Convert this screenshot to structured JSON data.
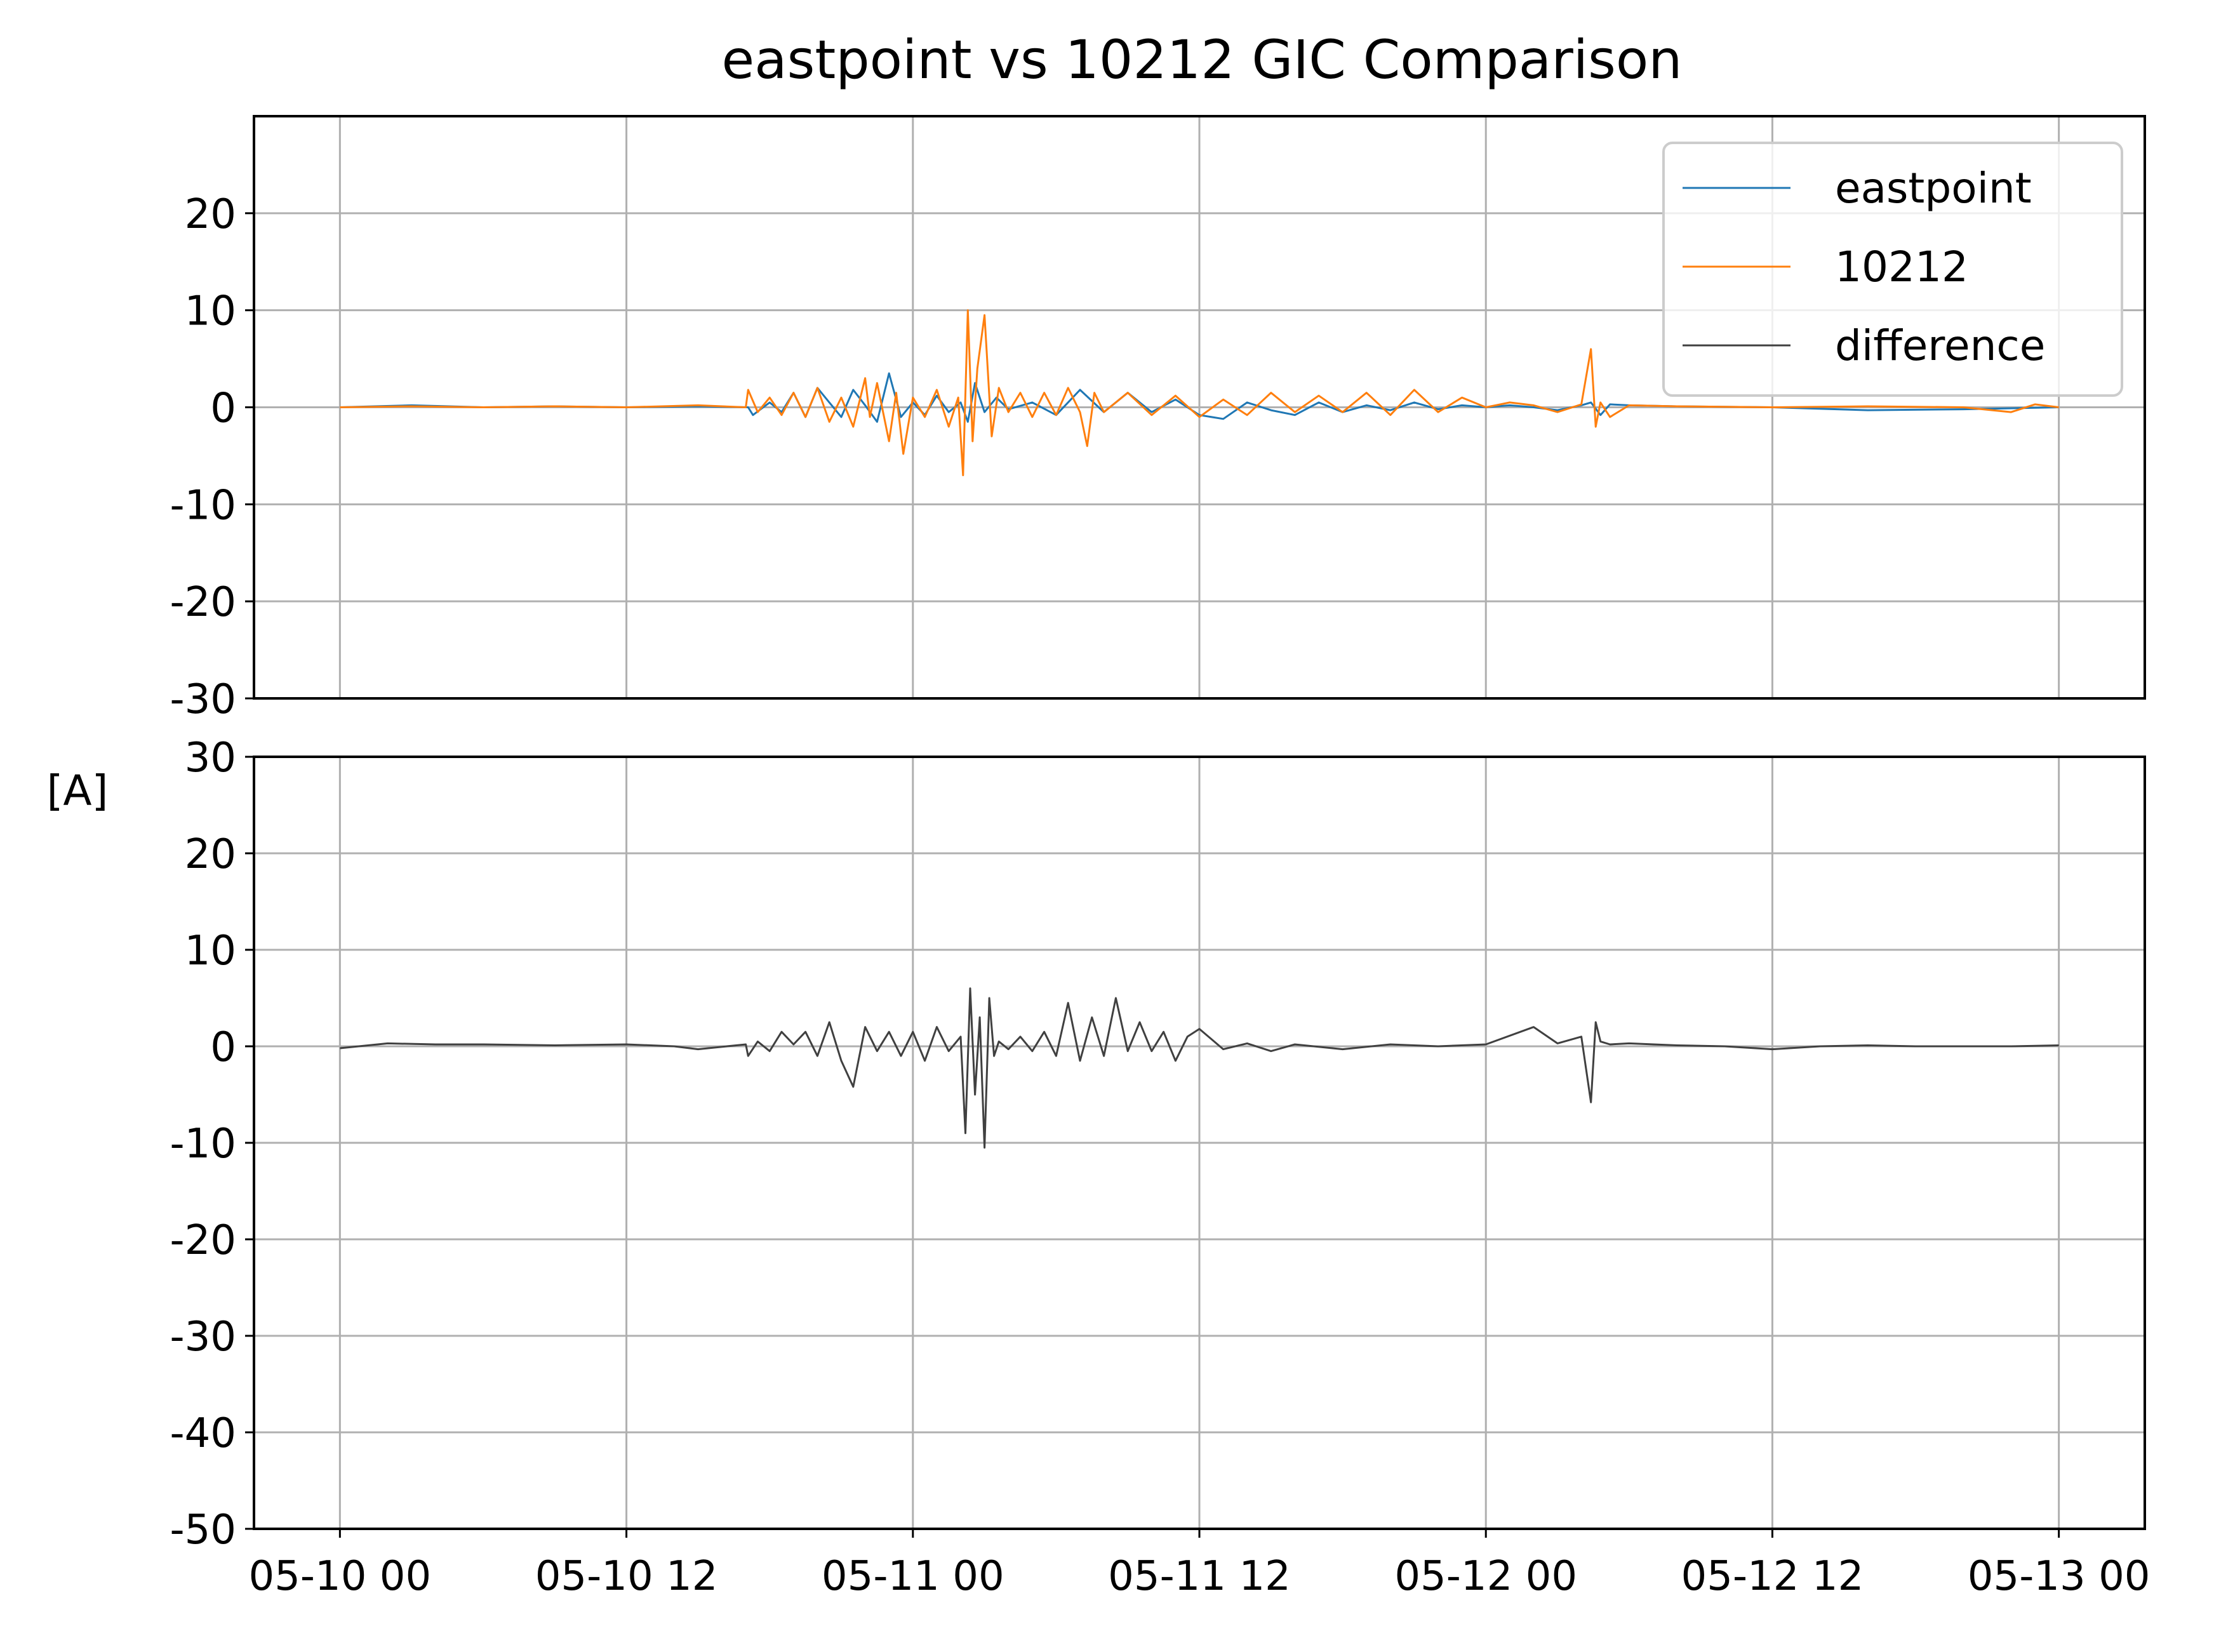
{
  "figure_title": "eastpoint vs 10212 GIC Comparison",
  "shared_ylabel": "[A]",
  "x_axis": {
    "unit": "hours since 05-10 00",
    "range": [
      -3.6,
      75.6
    ],
    "ticks": [
      0,
      12,
      24,
      36,
      48,
      60,
      72
    ],
    "tick_labels": [
      "05-10 00",
      "05-10 12",
      "05-11 00",
      "05-11 12",
      "05-12 00",
      "05-12 12",
      "05-13 00"
    ]
  },
  "colors": {
    "eastpoint": "#1f77b4",
    "10212": "#ff7f0e",
    "difference": "#404040",
    "grid": "#b0b0b0"
  },
  "legend": {
    "entries": [
      "eastpoint",
      "10212",
      "difference"
    ],
    "placement": "top-right of upper panel"
  },
  "chart_data": [
    {
      "type": "line",
      "panel": "upper",
      "title": "eastpoint vs 10212 GIC Comparison",
      "ylabel": "[A]",
      "ylim": [
        -30,
        30
      ],
      "yticks": [
        -30,
        -20,
        -10,
        0,
        10,
        20
      ],
      "ytick_labels": [
        "-30",
        "-20",
        "-10",
        "0",
        "10",
        "20"
      ],
      "grid": true,
      "series": [
        {
          "name": "eastpoint",
          "color": "#1f77b4",
          "x": [
            0,
            3,
            6,
            9,
            12,
            15,
            17.1,
            17.3,
            18,
            18.5,
            19,
            19.5,
            20,
            20.5,
            21,
            21.5,
            22,
            22.5,
            23,
            23.5,
            24,
            24.5,
            25,
            25.5,
            26,
            26.3,
            26.6,
            27,
            27.5,
            28,
            29,
            30,
            31,
            32,
            33,
            34,
            35,
            36,
            37,
            38,
            39,
            40,
            41,
            42,
            43,
            44,
            45,
            46,
            47,
            48,
            49,
            50,
            51,
            52,
            52.4,
            52.8,
            53.2,
            54,
            56,
            60,
            64,
            68,
            72
          ],
          "y": [
            0,
            0.2,
            0,
            0.1,
            0,
            0.1,
            0,
            -0.8,
            0.5,
            -0.5,
            1.5,
            -1,
            2,
            0.5,
            -1,
            1.8,
            0.2,
            -1.5,
            3.5,
            -1,
            0.5,
            -0.8,
            1.2,
            -0.5,
            0.5,
            -1.5,
            2.5,
            -0.5,
            1,
            -0.2,
            0.5,
            -0.8,
            1.8,
            -0.5,
            1.5,
            -0.5,
            0.8,
            -0.8,
            -1.2,
            0.5,
            -0.3,
            -0.8,
            0.5,
            -0.5,
            0.2,
            -0.3,
            0.5,
            -0.2,
            0.2,
            0,
            0.2,
            0,
            -0.3,
            0.2,
            0.5,
            -0.8,
            0.3,
            0.2,
            0.1,
            0,
            -0.3,
            -0.2,
            0
          ]
        },
        {
          "name": "10212",
          "color": "#ff7f0e",
          "x": [
            0,
            3,
            6,
            9,
            12,
            15,
            17,
            17.1,
            17.5,
            18,
            18.5,
            19,
            19.5,
            20,
            20.5,
            21,
            21.5,
            22,
            22.2,
            22.5,
            23,
            23.3,
            23.6,
            24,
            24.5,
            25,
            25.5,
            25.9,
            26.1,
            26.3,
            26.5,
            26.7,
            27,
            27.3,
            27.6,
            28,
            28.5,
            29,
            29.5,
            30,
            30.5,
            31,
            31.3,
            31.6,
            32,
            33,
            34,
            35,
            36,
            37,
            38,
            39,
            40,
            41,
            42,
            43,
            44,
            45,
            46,
            47,
            48,
            49,
            50,
            51,
            52,
            52.4,
            52.6,
            52.8,
            53.2,
            54,
            56,
            60,
            64,
            68,
            70,
            71,
            72
          ],
          "y": [
            0,
            0.1,
            0,
            0.1,
            0,
            0.2,
            0,
            1.8,
            -0.5,
            1,
            -0.8,
            1.5,
            -1,
            2,
            -1.5,
            1,
            -2,
            3,
            -1,
            2.5,
            -3.5,
            1.5,
            -4.8,
            1,
            -1,
            1.8,
            -2,
            1,
            -7,
            10,
            -3.5,
            4,
            9.5,
            -3,
            2,
            -0.5,
            1.5,
            -1,
            1.5,
            -0.8,
            2,
            -0.5,
            -4,
            1.5,
            -0.5,
            1.5,
            -0.8,
            1.2,
            -1,
            0.8,
            -0.8,
            1.5,
            -0.5,
            1.2,
            -0.5,
            1.5,
            -0.8,
            1.8,
            -0.5,
            1,
            0,
            0.5,
            0.2,
            -0.5,
            0.3,
            6,
            -2,
            0.5,
            -1,
            0.2,
            0.1,
            0,
            0.1,
            0,
            -0.5,
            0.3,
            0
          ]
        }
      ]
    },
    {
      "type": "line",
      "panel": "lower",
      "ylim": [
        -50,
        30
      ],
      "yticks": [
        -50,
        -40,
        -30,
        -20,
        -10,
        0,
        10,
        20,
        30
      ],
      "ytick_labels": [
        "-50",
        "-40",
        "-30",
        "-20",
        "-10",
        "0",
        "10",
        "20",
        "30"
      ],
      "grid": true,
      "series": [
        {
          "name": "difference",
          "color": "#404040",
          "x": [
            0,
            2,
            4,
            6,
            9,
            12,
            14,
            15,
            17,
            17.1,
            17.5,
            18,
            18.5,
            19,
            19.5,
            20,
            20.5,
            21,
            21.5,
            22,
            22.5,
            23,
            23.5,
            24,
            24.5,
            25,
            25.5,
            26,
            26.2,
            26.4,
            26.6,
            26.8,
            27,
            27.2,
            27.4,
            27.6,
            28,
            28.5,
            29,
            29.5,
            30,
            30.5,
            31,
            31.5,
            32,
            32.5,
            33,
            33.5,
            34,
            34.5,
            35,
            35.5,
            36,
            37,
            38,
            39,
            40,
            42,
            44,
            46,
            48,
            50,
            51,
            52,
            52.4,
            52.6,
            52.8,
            53.2,
            54,
            56,
            58,
            60,
            62,
            64,
            66,
            68,
            70,
            72
          ],
          "y": [
            -0.2,
            0.3,
            0.2,
            0.2,
            0.1,
            0.2,
            0,
            -0.3,
            0.2,
            -1,
            0.5,
            -0.5,
            1.5,
            0.2,
            1.5,
            -1,
            2.5,
            -1.5,
            -4.2,
            2,
            -0.5,
            1.5,
            -1,
            1.5,
            -1.5,
            2,
            -0.5,
            1,
            -9,
            6,
            -5,
            3,
            -10.5,
            5,
            -1,
            0.5,
            -0.3,
            1,
            -0.5,
            1.5,
            -1,
            4.5,
            -1.5,
            3,
            -1,
            5,
            -0.5,
            2.5,
            -0.5,
            1.5,
            -1.5,
            1,
            1.8,
            -0.3,
            0.3,
            -0.5,
            0.2,
            -0.3,
            0.2,
            0,
            0.2,
            2,
            0.3,
            1,
            -5.8,
            2.5,
            0.5,
            0.2,
            0.3,
            0.1,
            0,
            -0.3,
            0,
            0.1,
            0,
            0,
            0,
            0.1
          ]
        }
      ]
    }
  ]
}
